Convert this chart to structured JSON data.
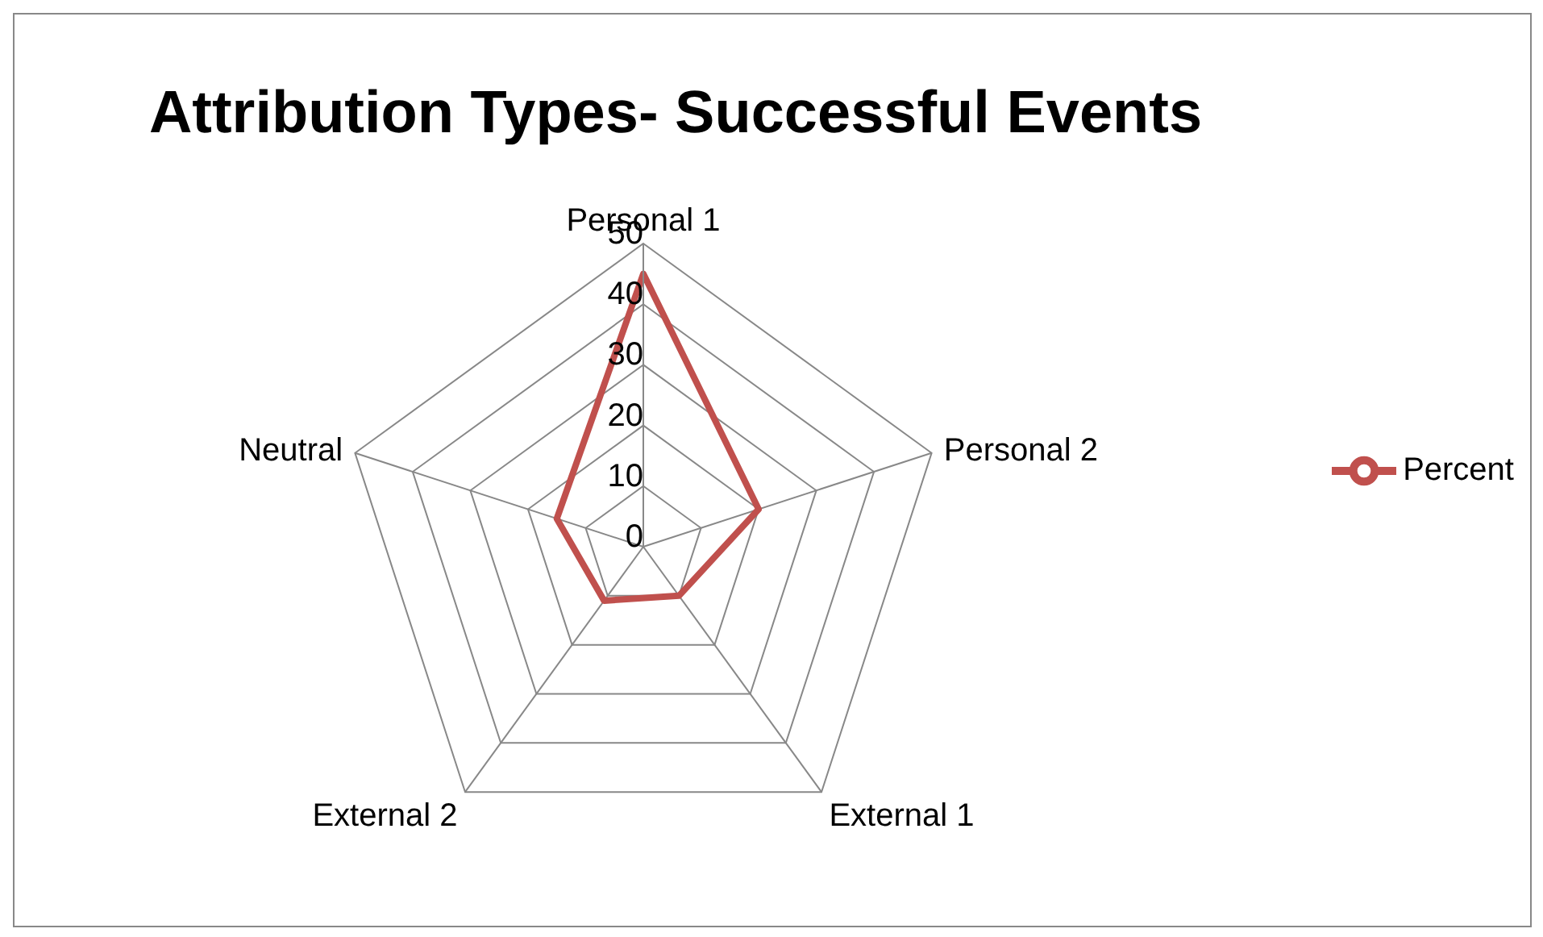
{
  "chart_data": {
    "type": "radar",
    "title": "Attribution Types- Successful Events",
    "categories": [
      "Personal 1",
      "Personal 2",
      "External 1",
      "External 2",
      "Neutral"
    ],
    "series": [
      {
        "name": "Percent",
        "color": "#c0504d",
        "values": [
          45,
          20,
          10,
          11,
          15
        ]
      }
    ],
    "ylim": [
      0,
      50
    ],
    "yticks": [
      0,
      10,
      20,
      30,
      40,
      50
    ],
    "grid": true,
    "legend": "right",
    "marker": "none"
  }
}
